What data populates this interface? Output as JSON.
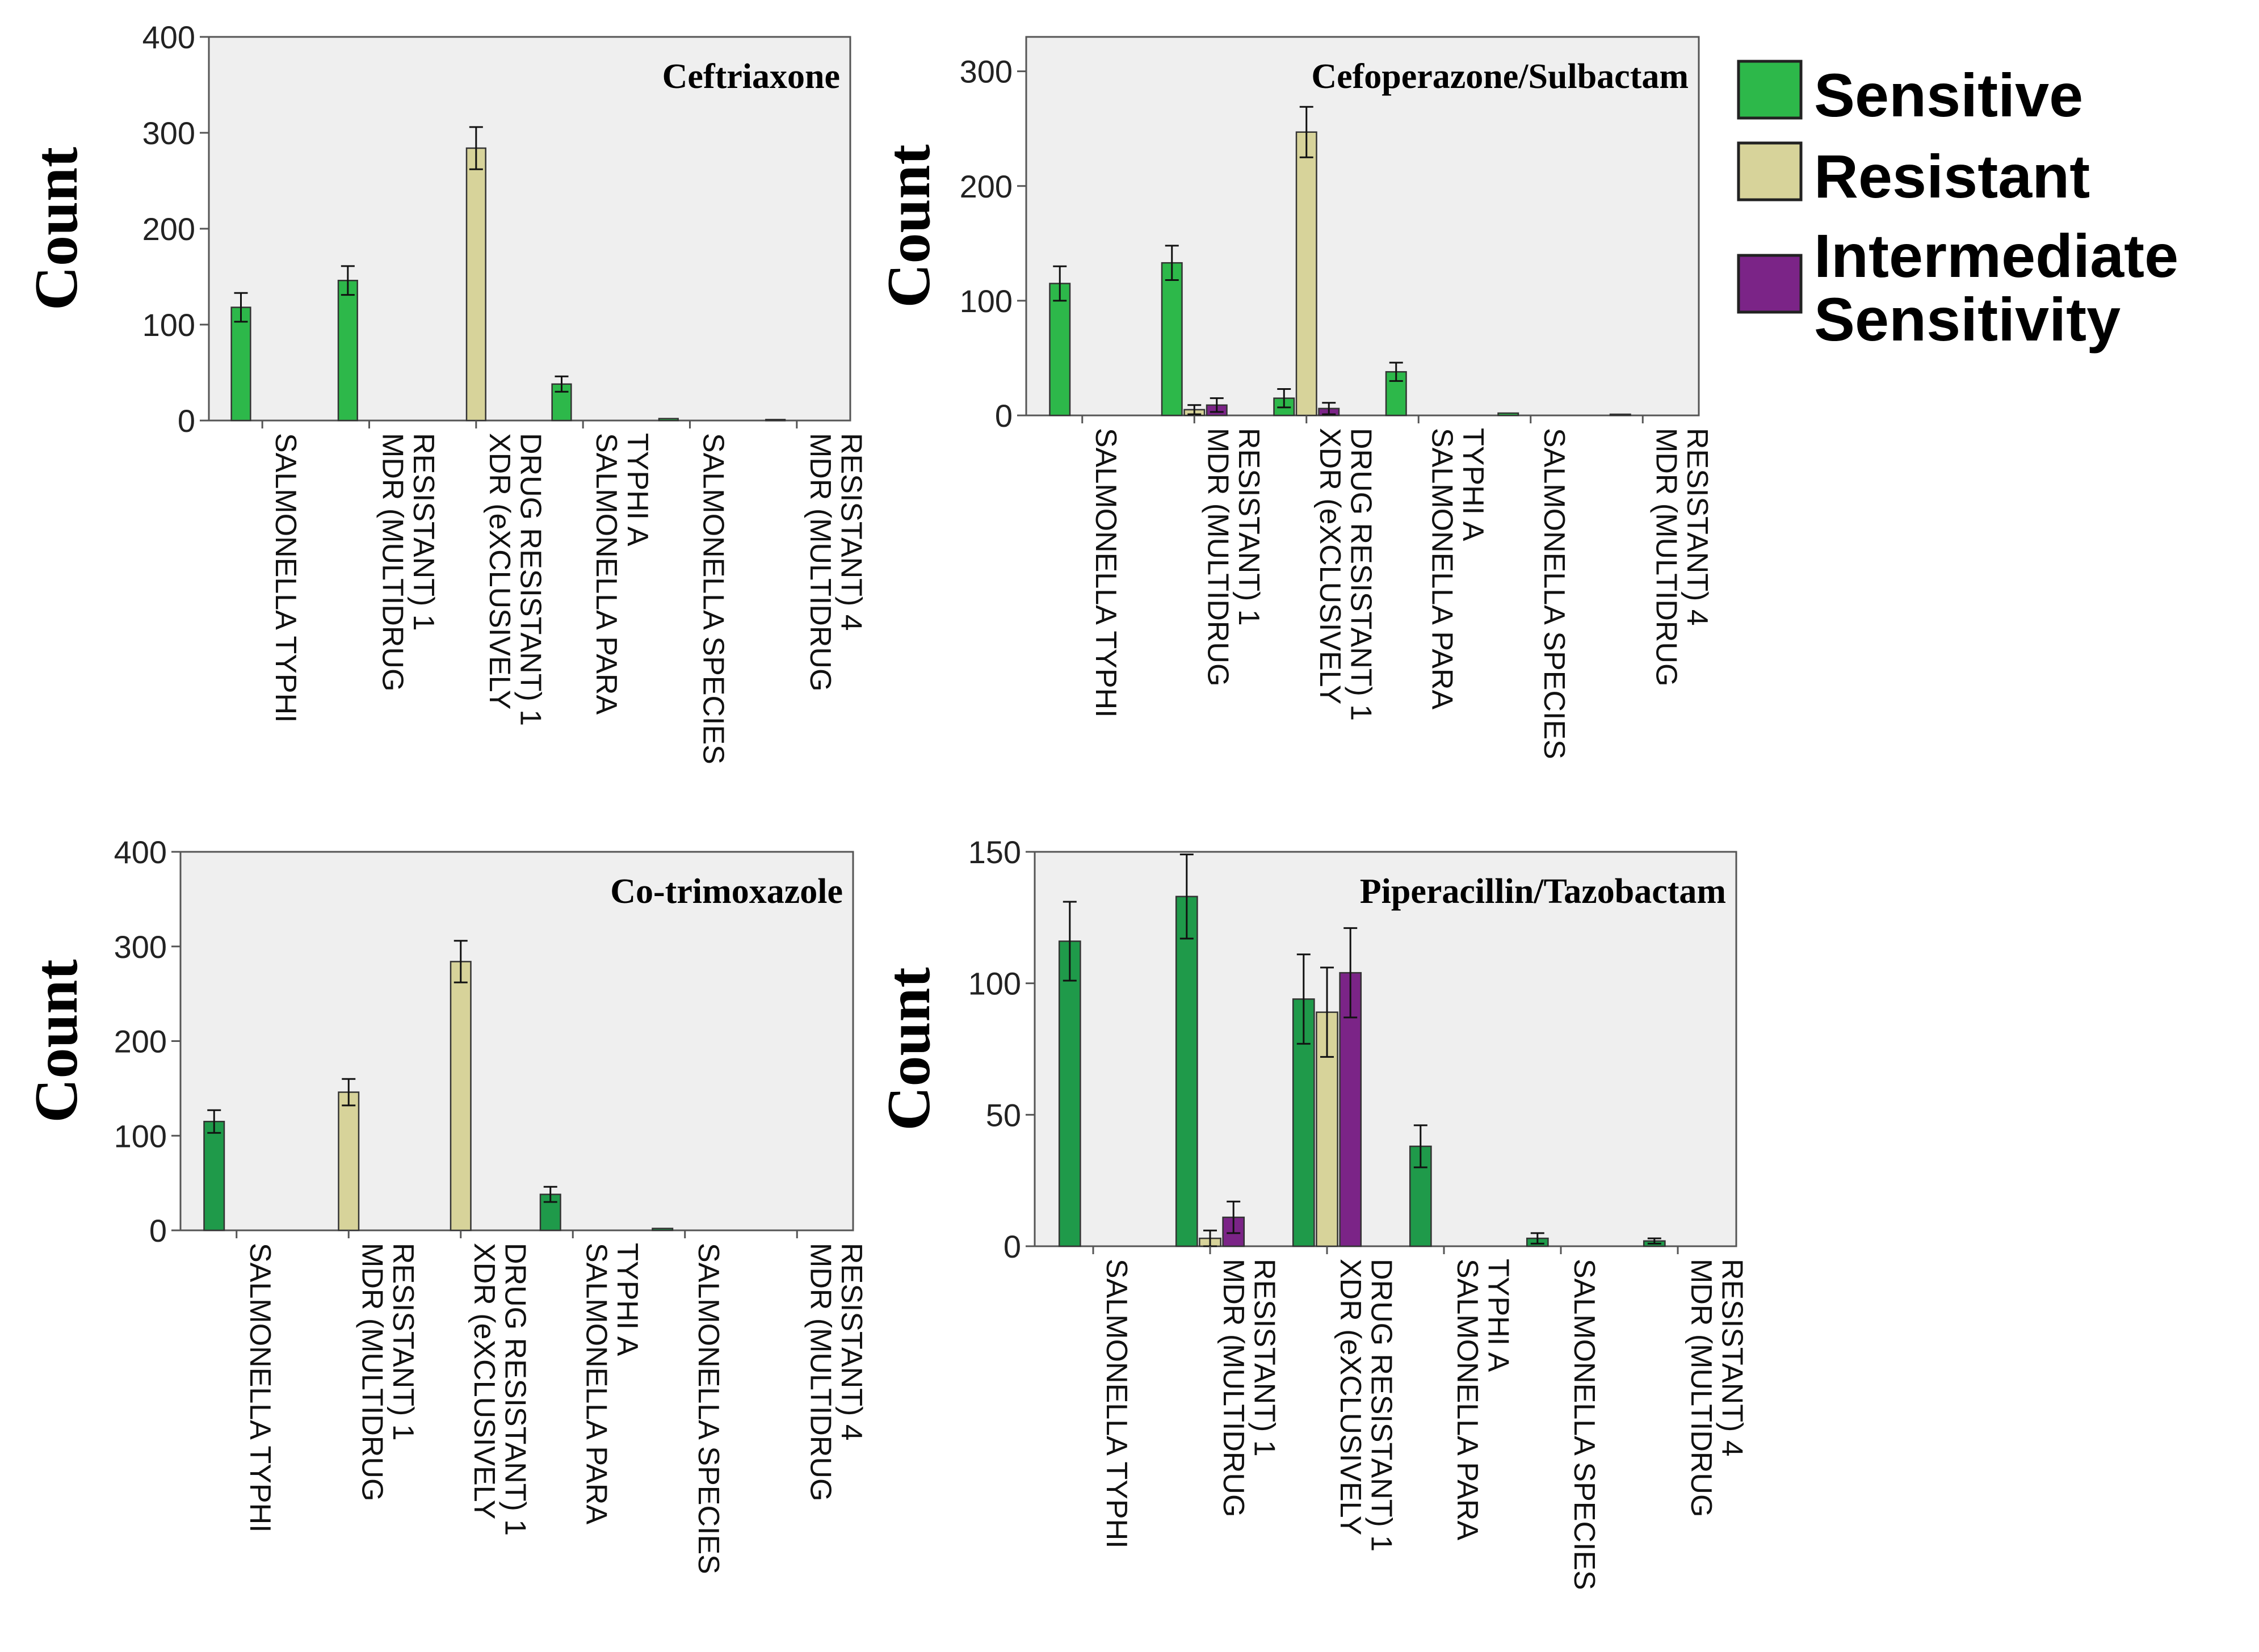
{
  "legend": {
    "items": [
      {
        "lines": [
          "Sensitive"
        ],
        "color": "#2db84a"
      },
      {
        "lines": [
          "Resistant"
        ],
        "color": "#d7d39a"
      },
      {
        "lines": [
          "Intermediate",
          "Sensitivity"
        ],
        "color": "#7b2487"
      }
    ]
  },
  "chart_data": [
    {
      "type": "bar",
      "title": "Ceftriaxone",
      "ylabel": "Count",
      "ylim": [
        0,
        400
      ],
      "yticks": [
        0,
        100,
        200,
        300,
        400
      ],
      "categories": [
        [
          "SALMONELLA TYPHI"
        ],
        [
          "MDR (MULTIDRUG",
          "RESISTANT) 1"
        ],
        [
          "XDR (eXCLUSIVELY",
          "DRUG RESISTANT) 1"
        ],
        [
          "SALMONELLA PARA",
          "TYPHI A"
        ],
        [
          "SALMONELLA SPECIES"
        ],
        [
          "MDR (MULTIDRUG",
          "RESISTANT) 4"
        ]
      ],
      "series": [
        {
          "name": "Sensitive",
          "color": "#2db84a",
          "values": [
            118,
            146,
            0,
            38,
            2,
            1
          ],
          "errors": [
            15,
            15,
            0,
            8,
            0,
            0
          ]
        },
        {
          "name": "Resistant",
          "color": "#d7d39a",
          "values": [
            0,
            0,
            284,
            0,
            0,
            0
          ],
          "errors": [
            0,
            0,
            22,
            0,
            0,
            0
          ]
        },
        {
          "name": "Intermediate Sensitivity",
          "color": "#7b2487",
          "values": [
            0,
            0,
            0,
            0,
            0,
            0
          ],
          "errors": [
            0,
            0,
            0,
            0,
            0,
            0
          ]
        }
      ]
    },
    {
      "type": "bar",
      "title": "Cefoperazone/Sulbactam",
      "ylabel": "Count",
      "ylim": [
        0,
        330
      ],
      "yticks": [
        0,
        100,
        200,
        300
      ],
      "categories": [
        [
          "SALMONELLA TYPHI"
        ],
        [
          "MDR (MULTIDRUG",
          "RESISTANT) 1"
        ],
        [
          "XDR (eXCLUSIVELY",
          "DRUG RESISTANT) 1"
        ],
        [
          "SALMONELLA PARA",
          "TYPHI A"
        ],
        [
          "SALMONELLA SPECIES"
        ],
        [
          "MDR (MULTIDRUG",
          "RESISTANT) 4"
        ]
      ],
      "series": [
        {
          "name": "Sensitive",
          "color": "#2db84a",
          "values": [
            115,
            133,
            15,
            38,
            2,
            1
          ],
          "errors": [
            15,
            15,
            8,
            8,
            0,
            0
          ]
        },
        {
          "name": "Resistant",
          "color": "#d7d39a",
          "values": [
            0,
            5,
            247,
            0,
            0,
            0
          ],
          "errors": [
            0,
            4,
            22,
            0,
            0,
            0
          ]
        },
        {
          "name": "Intermediate Sensitivity",
          "color": "#7b2487",
          "values": [
            0,
            9,
            6,
            0,
            0,
            0
          ],
          "errors": [
            0,
            6,
            5,
            0,
            0,
            0
          ]
        }
      ]
    },
    {
      "type": "bar",
      "title": "Co-trimoxazole",
      "ylabel": "Count",
      "ylim": [
        0,
        400
      ],
      "yticks": [
        0,
        100,
        200,
        300,
        400
      ],
      "categories": [
        [
          "SALMONELLA TYPHI"
        ],
        [
          "MDR (MULTIDRUG",
          "RESISTANT) 1"
        ],
        [
          "XDR (eXCLUSIVELY",
          "DRUG RESISTANT) 1"
        ],
        [
          "SALMONELLA PARA",
          "TYPHI A"
        ],
        [
          "SALMONELLA SPECIES"
        ],
        [
          "MDR (MULTIDRUG",
          "RESISTANT) 4"
        ]
      ],
      "series": [
        {
          "name": "Sensitive",
          "color": "#1f9a4a",
          "values": [
            115,
            0,
            0,
            38,
            2,
            0
          ],
          "errors": [
            12,
            0,
            0,
            8,
            0,
            0
          ]
        },
        {
          "name": "Resistant",
          "color": "#d7d39a",
          "values": [
            0,
            146,
            284,
            0,
            0,
            0
          ],
          "errors": [
            0,
            14,
            22,
            0,
            0,
            0
          ]
        },
        {
          "name": "Intermediate Sensitivity",
          "color": "#7b2487",
          "values": [
            0,
            0,
            0,
            0,
            0,
            0
          ],
          "errors": [
            0,
            0,
            0,
            0,
            0,
            0
          ]
        }
      ]
    },
    {
      "type": "bar",
      "title": "Piperacillin/Tazobactam",
      "ylabel": "Count",
      "ylim": [
        0,
        150
      ],
      "yticks": [
        0,
        50,
        100,
        150
      ],
      "categories": [
        [
          "SALMONELLA TYPHI"
        ],
        [
          "MDR (MULTIDRUG",
          "RESISTANT) 1"
        ],
        [
          "XDR (eXCLUSIVELY",
          "DRUG RESISTANT) 1"
        ],
        [
          "SALMONELLA PARA",
          "TYPHI A"
        ],
        [
          "SALMONELLA SPECIES"
        ],
        [
          "MDR (MULTIDRUG",
          "RESISTANT) 4"
        ]
      ],
      "series": [
        {
          "name": "Sensitive",
          "color": "#1f9a4a",
          "values": [
            116,
            133,
            94,
            38,
            3,
            2
          ],
          "errors": [
            15,
            16,
            17,
            8,
            2,
            1
          ]
        },
        {
          "name": "Resistant",
          "color": "#d7d39a",
          "values": [
            0,
            3,
            89,
            0,
            0,
            0
          ],
          "errors": [
            0,
            3,
            17,
            0,
            0,
            0
          ]
        },
        {
          "name": "Intermediate Sensitivity",
          "color": "#7b2487",
          "values": [
            0,
            11,
            104,
            0,
            0,
            0
          ],
          "errors": [
            0,
            6,
            17,
            0,
            0,
            0
          ]
        }
      ]
    }
  ]
}
